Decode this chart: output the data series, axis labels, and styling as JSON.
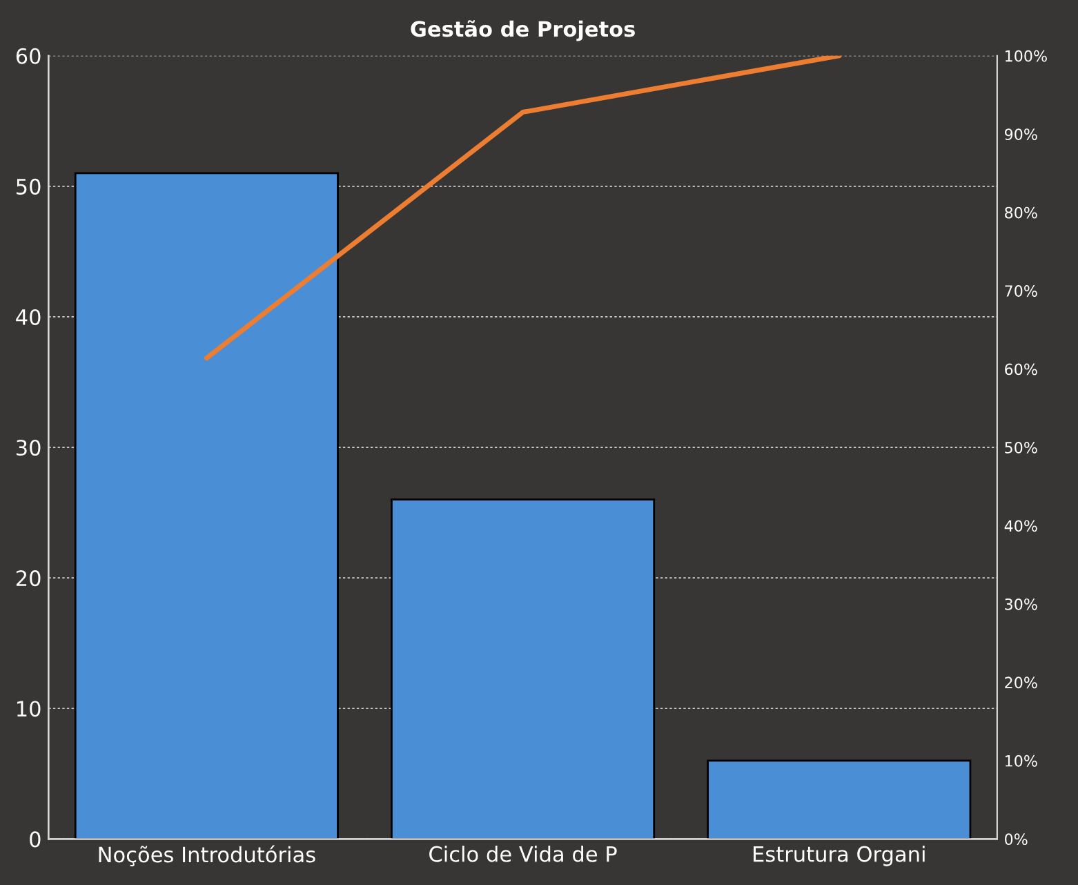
{
  "chart_data": {
    "type": "bar",
    "title": "Gestão de Projetos",
    "categories": [
      "Noções Introdutórias",
      "Ciclo de Vida de P",
      "Estrutura Organi"
    ],
    "series": [
      {
        "color": "#4a8fd6",
        "values": [
          51,
          26,
          6
        ]
      },
      {
        "type": "line",
        "color": "#ed7d31",
        "axis": "y2",
        "values": [
          61.4,
          92.8,
          100
        ]
      }
    ],
    "ylim": [
      0,
      60
    ],
    "yticks": [
      0,
      10,
      20,
      30,
      40,
      50,
      60
    ],
    "y2lim": [
      0,
      100
    ],
    "y2ticks": [
      {
        "value": 0,
        "label": "0%"
      },
      {
        "value": 10,
        "label": "10%"
      },
      {
        "value": 20,
        "label": "20%"
      },
      {
        "value": 30,
        "label": "30%"
      },
      {
        "value": 40,
        "label": "40%"
      },
      {
        "value": 50,
        "label": "50%"
      },
      {
        "value": 60,
        "label": "60%"
      },
      {
        "value": 70,
        "label": "70%"
      },
      {
        "value": 80,
        "label": "80%"
      },
      {
        "value": 90,
        "label": "90%"
      },
      {
        "value": 100,
        "label": "100%"
      }
    ],
    "grid": "y"
  }
}
